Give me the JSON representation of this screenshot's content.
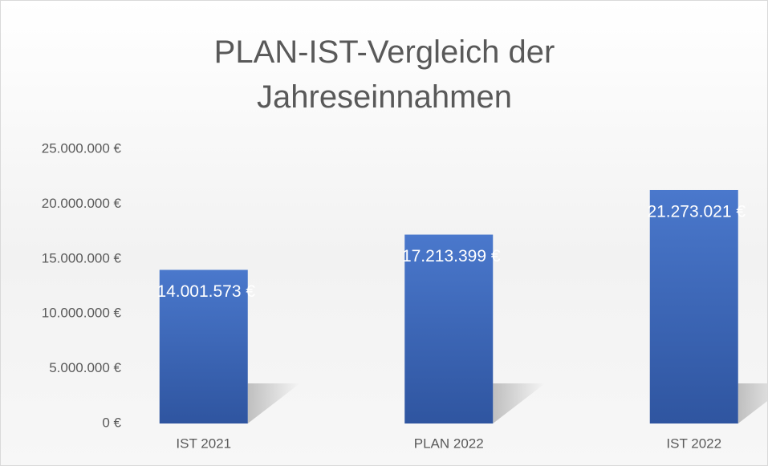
{
  "chart_data": {
    "type": "bar",
    "title": "PLAN-IST-Vergleich der Jahreseinnahmen",
    "categories": [
      "IST 2021",
      "PLAN 2022",
      "IST 2022"
    ],
    "values": [
      14001573,
      17213399,
      21273021
    ],
    "value_labels": [
      "14.001.573 €",
      "17.213.399 €",
      "21.273.021 €"
    ],
    "color": "#4472c4",
    "ylim": [
      0,
      25000000
    ],
    "yticks": [
      {
        "value": 0,
        "label": "0 €"
      },
      {
        "value": 5000000,
        "label": "5.000.000 €"
      },
      {
        "value": 10000000,
        "label": "10.000.000 €"
      },
      {
        "value": 15000000,
        "label": "15.000.000 €"
      },
      {
        "value": 20000000,
        "label": "20.000.000 €"
      },
      {
        "value": 25000000,
        "label": "25.000.000 €"
      }
    ],
    "grid": false
  }
}
